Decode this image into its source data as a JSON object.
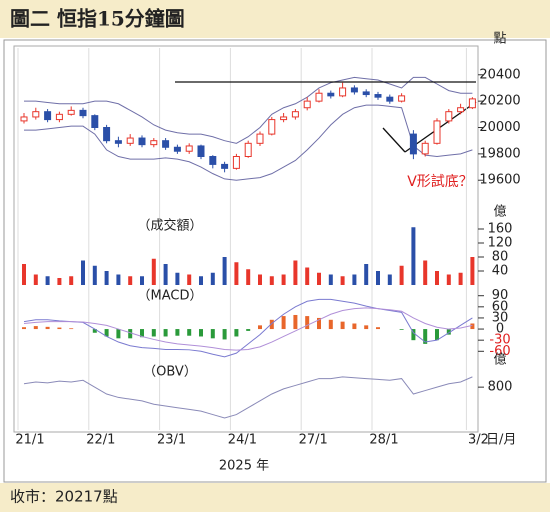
{
  "title": "圖二  恒指15分鐘圖",
  "footer": "收市：20217點",
  "x_axis": {
    "xticks": [
      {
        "value": 0,
        "label": "21/1"
      },
      {
        "value": 6,
        "label": "22/1"
      },
      {
        "value": 12,
        "label": "23/1"
      },
      {
        "value": 18,
        "label": "24/1"
      },
      {
        "value": 24,
        "label": "27/1"
      },
      {
        "value": 30,
        "label": "28/1"
      },
      {
        "value": 38,
        "label": "3/2"
      }
    ],
    "xlabel": "日/月",
    "year_label": "2025 年"
  },
  "chart_data": [
    {
      "type": "candlestick",
      "y_unit": "點",
      "annotation": "V形試底？",
      "annotation_color": "#e02020",
      "up_color": "#e8362b",
      "down_color": "#2a4fa8",
      "band_color": "#6f6fa8",
      "reference_line": 20345,
      "open": [
        20050,
        20080,
        20120,
        20060,
        20100,
        20130,
        20090,
        20000,
        19900,
        19880,
        19920,
        19870,
        19900,
        19850,
        19820,
        19860,
        19780,
        19720,
        19690,
        19780,
        19880,
        19950,
        20060,
        20080,
        20150,
        20200,
        20260,
        20240,
        20300,
        20270,
        20250,
        20230,
        20200,
        19950,
        19800,
        19880,
        20050,
        20120,
        20150
      ],
      "high": [
        20110,
        20150,
        20140,
        20120,
        20160,
        20150,
        20100,
        20020,
        19930,
        19950,
        19940,
        19920,
        19920,
        19870,
        19880,
        19870,
        19790,
        19740,
        19800,
        19900,
        19970,
        20080,
        20110,
        20140,
        20230,
        20290,
        20280,
        20340,
        20320,
        20290,
        20270,
        20250,
        20260,
        19980,
        19900,
        20070,
        20140,
        20180,
        20230
      ],
      "low": [
        20030,
        20060,
        20040,
        20040,
        20090,
        20070,
        19980,
        19880,
        19850,
        19860,
        19850,
        19850,
        19830,
        19800,
        19800,
        19760,
        19690,
        19660,
        19680,
        19770,
        19860,
        19940,
        20040,
        20060,
        20130,
        20190,
        20220,
        20230,
        20250,
        20230,
        20210,
        20180,
        20190,
        19760,
        19780,
        19870,
        20030,
        20100,
        20140
      ],
      "close": [
        20080,
        20120,
        20060,
        20100,
        20130,
        20090,
        20000,
        19900,
        19880,
        19920,
        19870,
        19900,
        19850,
        19820,
        19860,
        19780,
        19720,
        19690,
        19780,
        19880,
        19950,
        20060,
        20080,
        20120,
        20200,
        20260,
        20240,
        20300,
        20270,
        20250,
        20230,
        20200,
        20240,
        19800,
        19880,
        20050,
        20120,
        20150,
        20217
      ],
      "upper": [
        20200,
        20200,
        20190,
        20180,
        20180,
        20180,
        20200,
        20200,
        20180,
        20130,
        20080,
        20020,
        19980,
        19960,
        19950,
        19950,
        19930,
        19900,
        19880,
        19930,
        20000,
        20100,
        20150,
        20180,
        20230,
        20300,
        20340,
        20360,
        20380,
        20370,
        20360,
        20330,
        20300,
        20380,
        20380,
        20330,
        20280,
        20260,
        20260
      ],
      "lower": [
        19980,
        19980,
        19990,
        20000,
        20010,
        20010,
        19950,
        19830,
        19780,
        19760,
        19760,
        19760,
        19770,
        19760,
        19740,
        19700,
        19650,
        19610,
        19600,
        19610,
        19620,
        19650,
        19700,
        19750,
        19830,
        19920,
        20020,
        20100,
        20150,
        20170,
        20170,
        20160,
        20150,
        19860,
        19790,
        19780,
        19790,
        19800,
        19830
      ],
      "ylim": [
        19450,
        20550
      ],
      "yticks": [
        19600,
        19800,
        20000,
        20200,
        20400
      ]
    },
    {
      "type": "bar",
      "label": "（成交額）",
      "y_unit": "億",
      "values": [
        60,
        30,
        25,
        20,
        25,
        70,
        55,
        40,
        30,
        25,
        25,
        75,
        60,
        35,
        30,
        25,
        35,
        80,
        65,
        45,
        30,
        25,
        30,
        70,
        50,
        35,
        30,
        25,
        30,
        60,
        40,
        30,
        55,
        165,
        70,
        40,
        30,
        35,
        80
      ],
      "ylim": [
        0,
        180
      ],
      "yticks": [
        40,
        80,
        120,
        160
      ]
    },
    {
      "type": "macd",
      "label": "（MACD）",
      "pos_color": "#e8662b",
      "neg_color": "#2a9a3a",
      "histogram": [
        5,
        8,
        6,
        4,
        2,
        0,
        -10,
        -20,
        -25,
        -25,
        -22,
        -20,
        -20,
        -18,
        -18,
        -20,
        -25,
        -28,
        -20,
        -5,
        10,
        25,
        35,
        38,
        35,
        30,
        25,
        20,
        15,
        10,
        5,
        0,
        -2,
        -30,
        -40,
        -30,
        -15,
        0,
        15
      ],
      "lines": [
        {
          "color": "#7a7ad0",
          "values": [
            20,
            25,
            25,
            22,
            20,
            18,
            0,
            -20,
            -35,
            -45,
            -50,
            -52,
            -55,
            -55,
            -56,
            -60,
            -68,
            -75,
            -65,
            -40,
            -15,
            15,
            40,
            60,
            75,
            80,
            80,
            75,
            70,
            62,
            55,
            50,
            45,
            -10,
            -35,
            -30,
            -10,
            10,
            30
          ]
        },
        {
          "color": "#b08fd8",
          "values": [
            15,
            18,
            20,
            20,
            20,
            19,
            15,
            10,
            0,
            -10,
            -20,
            -28,
            -35,
            -40,
            -43,
            -46,
            -50,
            -55,
            -57,
            -55,
            -48,
            -35,
            -20,
            -5,
            10,
            25,
            40,
            50,
            55,
            57,
            55,
            52,
            48,
            30,
            15,
            5,
            0,
            3,
            10
          ]
        }
      ],
      "ylim": [
        -70,
        100
      ],
      "yticks": [
        90,
        60,
        30,
        0,
        -30,
        -60
      ],
      "neg_tick_color": "#e02020"
    },
    {
      "type": "line",
      "label": "（OBV）",
      "y_unit": "億",
      "color": "#8a8ab8",
      "values": [
        820,
        830,
        825,
        835,
        830,
        840,
        800,
        760,
        740,
        730,
        720,
        700,
        690,
        680,
        670,
        660,
        640,
        620,
        640,
        680,
        720,
        760,
        790,
        810,
        830,
        850,
        850,
        860,
        855,
        850,
        845,
        840,
        850,
        760,
        780,
        800,
        820,
        830,
        860
      ],
      "ylim": [
        550,
        900
      ],
      "yticks": [
        800
      ]
    }
  ]
}
